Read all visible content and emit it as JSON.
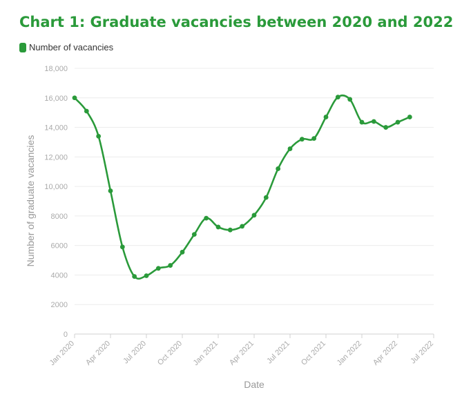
{
  "chart_data": {
    "type": "line",
    "title": "Chart 1: Graduate vacancies between 2020 and 2022",
    "xlabel": "Date",
    "ylabel": "Number of graduate vacancies",
    "ylim": [
      0,
      18000
    ],
    "y_ticks": [
      0,
      2000,
      4000,
      6000,
      8000,
      10000,
      12000,
      14000,
      16000,
      18000
    ],
    "y_tick_labels": [
      "0",
      "2000",
      "4000",
      "6000",
      "8000",
      "10,000",
      "12,000",
      "14,000",
      "16,000",
      "18,000"
    ],
    "x_ticks": [
      "2020-01",
      "2020-04",
      "2020-07",
      "2020-10",
      "2021-01",
      "2021-04",
      "2021-07",
      "2021-10",
      "2022-01",
      "2022-04",
      "2022-07"
    ],
    "x_tick_labels": [
      "Jan 2020",
      "Apr 2020",
      "Jul 2020",
      "Oct 2020",
      "Jan 2021",
      "Apr 2021",
      "Jul 2021",
      "Oct 2021",
      "Jan 2022",
      "Apr 2022",
      "Jul 2022"
    ],
    "legend_position": "top-left",
    "grid": true,
    "series": [
      {
        "name": "Number of vacancies",
        "color": "#2a9a3a",
        "x": [
          "2020-01",
          "2020-02",
          "2020-03",
          "2020-04",
          "2020-05",
          "2020-06",
          "2020-07",
          "2020-08",
          "2020-09",
          "2020-10",
          "2020-11",
          "2020-12",
          "2021-01",
          "2021-02",
          "2021-03",
          "2021-04",
          "2021-05",
          "2021-06",
          "2021-07",
          "2021-08",
          "2021-09",
          "2021-10",
          "2021-11",
          "2021-12",
          "2022-01",
          "2022-02",
          "2022-03",
          "2022-04",
          "2022-05"
        ],
        "values": [
          16000,
          15100,
          13400,
          9700,
          5900,
          3900,
          3950,
          4450,
          4650,
          5550,
          6750,
          7850,
          7250,
          7050,
          7300,
          8050,
          9250,
          11200,
          12550,
          13200,
          13250,
          14700,
          16050,
          15900,
          14350,
          14400,
          14000,
          14350,
          14700
        ]
      }
    ]
  }
}
